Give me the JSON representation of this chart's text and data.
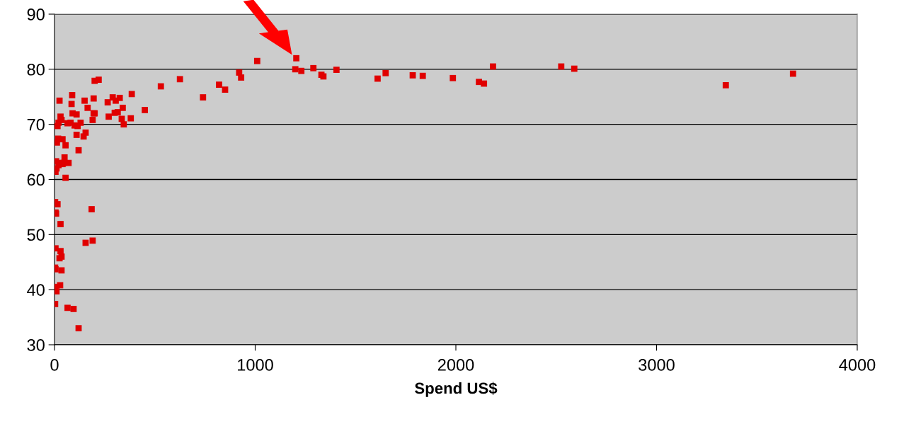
{
  "chart_data": {
    "type": "scatter",
    "xlabel": "Spend US$",
    "xlim": [
      0,
      4000
    ],
    "xticks": [
      0,
      1000,
      2000,
      3000,
      4000
    ],
    "ylim": [
      30,
      90
    ],
    "yticks": [
      30,
      40,
      50,
      60,
      70,
      80,
      90
    ],
    "grid": "y",
    "marker": "square",
    "series": [
      {
        "color": "#e00000",
        "x": [
          1010,
          1205,
          1200,
          1230,
          1290,
          1330,
          1340,
          1405,
          1610,
          1650,
          1785,
          1835,
          1985,
          2115,
          2140,
          2185,
          2525,
          2590,
          3345,
          3680,
          920,
          930,
          820,
          850,
          740,
          625,
          530,
          450,
          385,
          380,
          340,
          345,
          335,
          325,
          315,
          305,
          300,
          290,
          270,
          265,
          220,
          200,
          195,
          195,
          200,
          190,
          185,
          190,
          165,
          155,
          150,
          145,
          155,
          130,
          120,
          115,
          110,
          110,
          100,
          90,
          88,
          85,
          80,
          70,
          65,
          55,
          55,
          50,
          45,
          40,
          35,
          30,
          25,
          20,
          15,
          18,
          12,
          10,
          8,
          5,
          3,
          5,
          8,
          15,
          30,
          30,
          35,
          25,
          35,
          5,
          3,
          5,
          2,
          10,
          28,
          3,
          65,
          95,
          120,
          20,
          30,
          40
        ],
        "values": [
          81.5,
          82,
          80,
          79.7,
          80.2,
          79,
          78.7,
          79.9,
          78.3,
          79.3,
          78.9,
          78.8,
          78.4,
          77.7,
          77.4,
          80.5,
          80.5,
          80.1,
          77.1,
          79.2,
          79.4,
          78.5,
          77.2,
          76.3,
          74.9,
          78.2,
          76.9,
          72.6,
          75.5,
          71.1,
          73,
          70,
          71,
          74.8,
          72.2,
          74.3,
          72.1,
          74.9,
          71.4,
          74,
          78.1,
          77.9,
          74.7,
          72,
          72,
          70.8,
          54.6,
          48.9,
          73,
          68.5,
          74.3,
          67.8,
          48.5,
          70.3,
          65.3,
          69.7,
          71.8,
          68.1,
          69.8,
          72,
          75.3,
          73.7,
          70.3,
          63,
          70.2,
          66.2,
          60.3,
          64,
          63,
          67.3,
          70.8,
          71.4,
          74.3,
          70.3,
          69.7,
          67.4,
          66.7,
          62,
          63.3,
          61.4,
          55.9,
          54,
          53.8,
          55.5,
          51.9,
          47,
          46,
          45.7,
          43.5,
          47.5,
          44,
          43.7,
          40.5,
          39.7,
          40.8,
          37.4,
          36.7,
          36.5,
          33,
          62.6,
          63,
          62.8
        ]
      }
    ]
  }
}
